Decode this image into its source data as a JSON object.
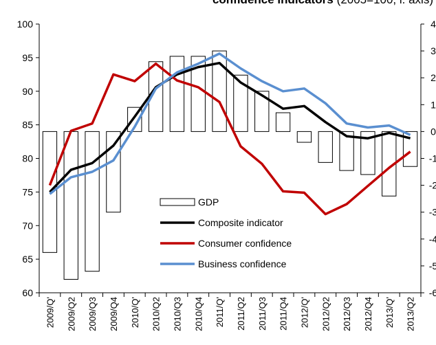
{
  "chart_data": {
    "type": "bar_line_combo",
    "title": "confidence indicators",
    "subtitle": "(2005=100, l. axis)",
    "categories": [
      "2009/Q'",
      "2009/Q2",
      "2009/Q3",
      "2009/Q4",
      "2010/Q'",
      "2010/Q2",
      "2010/Q3",
      "2010/Q4",
      "2011/Q'",
      "2011/Q2",
      "2011/Q3",
      "2011/Q4",
      "2012/Q'",
      "2012/Q2",
      "2012/Q3",
      "2012/Q4",
      "2013/Q'",
      "2013/Q2"
    ],
    "series": [
      {
        "name": "GDP",
        "type": "bar",
        "axis": "y2",
        "color": "#000000",
        "values": [
          -4.5,
          -5.5,
          -5.2,
          -3.0,
          0.9,
          2.6,
          2.8,
          2.8,
          3.0,
          2.1,
          1.5,
          0.7,
          -0.4,
          -1.15,
          -1.45,
          -1.6,
          -2.4,
          -1.3
        ]
      },
      {
        "name": "Composite indicator",
        "type": "line",
        "color": "#000000",
        "values": [
          75,
          78.3,
          79.3,
          81.9,
          86.2,
          90.6,
          92.5,
          93.6,
          94.2,
          91.3,
          89.4,
          87.4,
          87.8,
          85.4,
          83.3,
          83.0,
          83.8,
          83.0
        ]
      },
      {
        "name": "Consumer confidence",
        "type": "line",
        "color": "#c00000",
        "values": [
          76,
          84.1,
          85.2,
          92.5,
          91.5,
          94.1,
          91.6,
          90.6,
          88.4,
          81.8,
          79.2,
          75.1,
          74.9,
          71.7,
          73.2,
          75.9,
          78.6,
          81
        ]
      },
      {
        "name": "Business confidence",
        "type": "line",
        "color": "#5a8fd0",
        "values": [
          74.7,
          77.2,
          78,
          79.7,
          84.7,
          90.4,
          92.8,
          94.1,
          95.6,
          93.4,
          91.5,
          90.0,
          90.4,
          88.2,
          85.2,
          84.6,
          84.9,
          83.5
        ]
      }
    ],
    "ylim": [
      60,
      100
    ],
    "yticks": [
      60,
      65,
      70,
      75,
      80,
      85,
      90,
      95,
      100
    ],
    "y2lim": [
      -6,
      4
    ],
    "y2ticks": [
      -6,
      -5,
      -4,
      -3,
      -2,
      -1,
      0,
      1,
      2,
      3,
      4
    ]
  }
}
